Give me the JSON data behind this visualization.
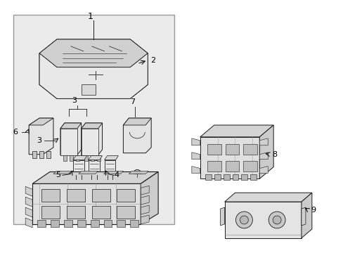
{
  "bg": "#ffffff",
  "lc": "#1a1a1a",
  "gray_fill": "#ebebeb",
  "mid_gray": "#d0d0d0",
  "dark_gray": "#b0b0b0",
  "fig_width": 4.89,
  "fig_height": 3.6,
  "dpi": 100,
  "label_font": 8,
  "label_color": "#000000"
}
